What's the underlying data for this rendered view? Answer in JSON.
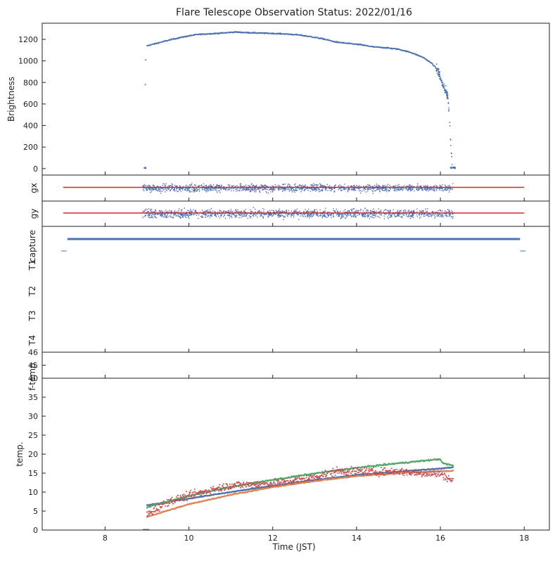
{
  "chart_data": {
    "title": "Flare Telescope Observation Status: 2022/01/16",
    "xlabel": "Time (JST)",
    "xlim": [
      6.5,
      18.6
    ],
    "x_ticks": [
      8,
      10,
      12,
      14,
      16,
      18
    ],
    "panels": [
      {
        "id": "brightness",
        "type": "scatter",
        "ylabel": "Brightness",
        "ylim": [
          -60,
          1350
        ],
        "y_ticks": [
          0,
          200,
          400,
          600,
          800,
          1000,
          1200
        ],
        "series": [
          {
            "color": "#4c72b0",
            "x": [
              8.93,
              8.96,
              8.98,
              9.0,
              9.3,
              9.6,
              9.9,
              10.2,
              10.5,
              10.8,
              11.1,
              11.4,
              11.7,
              12.0,
              12.3,
              12.6,
              12.9,
              13.2,
              13.5,
              13.8,
              14.1,
              14.4,
              14.7,
              15.0,
              15.3,
              15.6,
              15.8,
              15.95,
              16.05,
              16.12,
              16.18,
              16.22,
              16.26,
              16.3,
              16.35
            ],
            "y": [
              0,
              780,
              1010,
              1140,
              1170,
              1200,
              1225,
              1245,
              1252,
              1258,
              1268,
              1262,
              1258,
              1255,
              1250,
              1242,
              1225,
              1205,
              1175,
              1162,
              1150,
              1130,
              1122,
              1108,
              1078,
              1030,
              975,
              910,
              780,
              720,
              670,
              450,
              150,
              10,
              5
            ]
          }
        ]
      },
      {
        "id": "gx",
        "type": "scatter",
        "ylabel": "gx",
        "reference_line": {
          "color": "#d62728",
          "x_range": [
            7.0,
            18.0
          ]
        },
        "scatter_x_range": [
          8.9,
          16.3
        ],
        "series": [
          {
            "color": "#4c72b0"
          }
        ]
      },
      {
        "id": "gy",
        "type": "scatter",
        "ylabel": "gy",
        "reference_line": {
          "color": "#d62728",
          "x_range": [
            7.0,
            18.0
          ]
        },
        "scatter_x_range": [
          8.9,
          16.3
        ],
        "series": [
          {
            "color": "#4c72b0"
          }
        ]
      },
      {
        "id": "capture",
        "type": "line",
        "ylabels": [
          "capture",
          "T1",
          "T2",
          "T3",
          "T4"
        ],
        "capture_on": [
          7.1,
          17.9
        ],
        "capture_off_marks": [
          7.0,
          17.95
        ],
        "series": [
          {
            "color": "#4c72b0"
          }
        ]
      },
      {
        "id": "f-temp",
        "type": "line",
        "ylabel": "f-temp",
        "ylim": [
          44.0,
          46.0
        ],
        "y_ticks": [
          45,
          46
        ]
      },
      {
        "id": "temp",
        "type": "line",
        "ylabel": "temp.",
        "ylim": [
          0,
          40
        ],
        "y_ticks": [
          0,
          5,
          10,
          15,
          20,
          25,
          30,
          35,
          40
        ],
        "series": [
          {
            "color": "#4c72b0",
            "x": [
              9.0,
              10.0,
              11.0,
              12.0,
              13.0,
              14.0,
              15.0,
              16.0,
              16.3
            ],
            "y": [
              6.5,
              8.3,
              10.0,
              11.7,
              13.2,
              14.5,
              15.4,
              16.2,
              16.5
            ]
          },
          {
            "color": "#dd8452",
            "x": [
              9.0,
              10.0,
              11.0,
              12.0,
              13.0,
              14.0,
              15.0,
              16.0,
              16.3
            ],
            "y": [
              3.5,
              6.8,
              9.3,
              11.3,
              12.9,
              14.2,
              15.0,
              15.5,
              15.6
            ]
          },
          {
            "color": "#55a868",
            "x": [
              9.0,
              10.0,
              11.0,
              12.0,
              13.0,
              14.0,
              15.0,
              16.0,
              16.05,
              16.3
            ],
            "y": [
              6.0,
              9.0,
              11.4,
              13.2,
              14.9,
              16.4,
              17.6,
              18.7,
              17.6,
              17.0
            ]
          },
          {
            "color": "#c44e52",
            "x": [
              9.0,
              9.5,
              10.0,
              10.5,
              11.0,
              11.5,
              12.0,
              12.5,
              13.0,
              13.5,
              14.0,
              14.5,
              15.0,
              15.5,
              16.0,
              16.3
            ],
            "y": [
              4.0,
              7.5,
              9.0,
              10.5,
              11.8,
              12.0,
              12.3,
              13.0,
              14.0,
              15.5,
              15.5,
              15.3,
              15.5,
              15.0,
              14.8,
              13.0
            ]
          }
        ]
      }
    ]
  }
}
